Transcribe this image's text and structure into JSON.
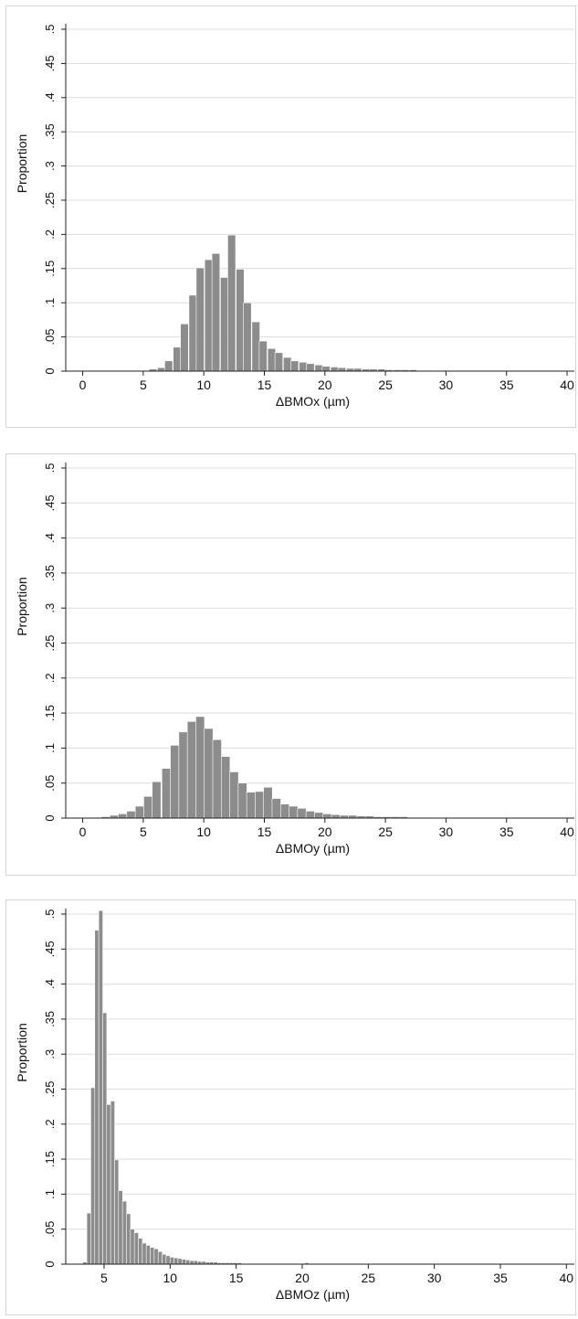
{
  "chart_data": [
    {
      "type": "bar",
      "ylabel": "Proportion",
      "xlabel": "ΔBMOx (µm)",
      "xlim": [
        -1.4,
        40.6
      ],
      "ylim": [
        0,
        0.5
      ],
      "xticks": [
        0,
        5,
        10,
        15,
        20,
        25,
        30,
        35,
        40
      ],
      "xtick_labels": [
        "0",
        "5",
        "10",
        "15",
        "20",
        "25",
        "30",
        "35",
        "40"
      ],
      "yticks": [
        0,
        0.05,
        0.1,
        0.15,
        0.2,
        0.25,
        0.3,
        0.35,
        0.4,
        0.45,
        0.5
      ],
      "ytick_labels": [
        "0",
        ".05",
        ".1",
        ".15",
        ".2",
        ".25",
        ".3",
        ".35",
        ".4",
        ".45",
        ".5"
      ],
      "grid": true,
      "bin_width": 0.65,
      "bins": [
        {
          "x": 4.5,
          "y": 0.001
        },
        {
          "x": 5.2,
          "y": 0.001
        },
        {
          "x": 5.8,
          "y": 0.003
        },
        {
          "x": 6.5,
          "y": 0.005
        },
        {
          "x": 7.1,
          "y": 0.015
        },
        {
          "x": 7.8,
          "y": 0.035
        },
        {
          "x": 8.4,
          "y": 0.069
        },
        {
          "x": 9.1,
          "y": 0.111
        },
        {
          "x": 9.7,
          "y": 0.151
        },
        {
          "x": 10.4,
          "y": 0.163
        },
        {
          "x": 11.0,
          "y": 0.172
        },
        {
          "x": 11.7,
          "y": 0.137
        },
        {
          "x": 12.3,
          "y": 0.199
        },
        {
          "x": 13.0,
          "y": 0.149
        },
        {
          "x": 13.6,
          "y": 0.1
        },
        {
          "x": 14.3,
          "y": 0.072
        },
        {
          "x": 14.9,
          "y": 0.044
        },
        {
          "x": 15.6,
          "y": 0.033
        },
        {
          "x": 16.2,
          "y": 0.027
        },
        {
          "x": 16.9,
          "y": 0.02
        },
        {
          "x": 17.5,
          "y": 0.015
        },
        {
          "x": 18.2,
          "y": 0.013
        },
        {
          "x": 18.8,
          "y": 0.011
        },
        {
          "x": 19.5,
          "y": 0.009
        },
        {
          "x": 20.1,
          "y": 0.007
        },
        {
          "x": 20.8,
          "y": 0.006
        },
        {
          "x": 21.4,
          "y": 0.005
        },
        {
          "x": 22.1,
          "y": 0.004
        },
        {
          "x": 22.7,
          "y": 0.004
        },
        {
          "x": 23.4,
          "y": 0.003
        },
        {
          "x": 24.0,
          "y": 0.003
        },
        {
          "x": 24.7,
          "y": 0.003
        },
        {
          "x": 25.3,
          "y": 0.002
        },
        {
          "x": 26.0,
          "y": 0.002
        },
        {
          "x": 26.6,
          "y": 0.002
        },
        {
          "x": 27.3,
          "y": 0.002
        },
        {
          "x": 27.9,
          "y": 0.001
        },
        {
          "x": 28.6,
          "y": 0.001
        },
        {
          "x": 29.2,
          "y": 0.001
        },
        {
          "x": 29.9,
          "y": 0.001
        },
        {
          "x": 30.5,
          "y": 0.001
        },
        {
          "x": 31.8,
          "y": 0.001
        },
        {
          "x": 33.1,
          "y": 0.001
        },
        {
          "x": 34.4,
          "y": 0.001
        },
        {
          "x": 35.7,
          "y": 0.001
        }
      ]
    },
    {
      "type": "bar",
      "ylabel": "Proportion",
      "xlabel": "ΔBMOy (µm)",
      "xlim": [
        -1.4,
        40.6
      ],
      "ylim": [
        0,
        0.5
      ],
      "xticks": [
        0,
        5,
        10,
        15,
        20,
        25,
        30,
        35,
        40
      ],
      "xtick_labels": [
        "0",
        "5",
        "10",
        "15",
        "20",
        "25",
        "30",
        "35",
        "40"
      ],
      "yticks": [
        0,
        0.05,
        0.1,
        0.15,
        0.2,
        0.25,
        0.3,
        0.35,
        0.4,
        0.45,
        0.5
      ],
      "ytick_labels": [
        "0",
        ".05",
        ".1",
        ".15",
        ".2",
        ".25",
        ".3",
        ".35",
        ".4",
        ".45",
        ".5"
      ],
      "grid": true,
      "bin_width": 0.72,
      "bins": [
        {
          "x": 1.2,
          "y": 0.001
        },
        {
          "x": 1.9,
          "y": 0.002
        },
        {
          "x": 2.6,
          "y": 0.004
        },
        {
          "x": 3.3,
          "y": 0.006
        },
        {
          "x": 4.0,
          "y": 0.01
        },
        {
          "x": 4.7,
          "y": 0.017
        },
        {
          "x": 5.4,
          "y": 0.031
        },
        {
          "x": 6.1,
          "y": 0.052
        },
        {
          "x": 6.9,
          "y": 0.071
        },
        {
          "x": 7.6,
          "y": 0.104
        },
        {
          "x": 8.3,
          "y": 0.123
        },
        {
          "x": 9.0,
          "y": 0.138
        },
        {
          "x": 9.7,
          "y": 0.145
        },
        {
          "x": 10.4,
          "y": 0.128
        },
        {
          "x": 11.1,
          "y": 0.112
        },
        {
          "x": 11.8,
          "y": 0.088
        },
        {
          "x": 12.5,
          "y": 0.066
        },
        {
          "x": 13.2,
          "y": 0.05
        },
        {
          "x": 13.9,
          "y": 0.037
        },
        {
          "x": 14.6,
          "y": 0.038
        },
        {
          "x": 15.3,
          "y": 0.044
        },
        {
          "x": 16.0,
          "y": 0.028
        },
        {
          "x": 16.7,
          "y": 0.02
        },
        {
          "x": 17.4,
          "y": 0.017
        },
        {
          "x": 18.1,
          "y": 0.014
        },
        {
          "x": 18.8,
          "y": 0.01
        },
        {
          "x": 19.5,
          "y": 0.008
        },
        {
          "x": 20.2,
          "y": 0.006
        },
        {
          "x": 20.9,
          "y": 0.005
        },
        {
          "x": 21.6,
          "y": 0.004
        },
        {
          "x": 22.3,
          "y": 0.004
        },
        {
          "x": 23.0,
          "y": 0.003
        },
        {
          "x": 23.7,
          "y": 0.003
        },
        {
          "x": 24.4,
          "y": 0.002
        },
        {
          "x": 25.1,
          "y": 0.002
        },
        {
          "x": 25.8,
          "y": 0.002
        },
        {
          "x": 26.5,
          "y": 0.002
        },
        {
          "x": 27.2,
          "y": 0.001
        },
        {
          "x": 27.9,
          "y": 0.001
        },
        {
          "x": 28.6,
          "y": 0.001
        },
        {
          "x": 29.3,
          "y": 0.001
        },
        {
          "x": 30.0,
          "y": 0.001
        },
        {
          "x": 31.4,
          "y": 0.001
        },
        {
          "x": 34.2,
          "y": 0.001
        },
        {
          "x": 39.2,
          "y": 0.001
        }
      ]
    },
    {
      "type": "bar",
      "ylabel": "Proportion",
      "xlabel": "ΔBMOz (µm)",
      "xlim": [
        2.1,
        40.6
      ],
      "ylim": [
        0,
        0.5
      ],
      "xticks": [
        5,
        10,
        15,
        20,
        25,
        30,
        35,
        40
      ],
      "xtick_labels": [
        "5",
        "10",
        "15",
        "20",
        "25",
        "30",
        "35",
        "40"
      ],
      "yticks": [
        0,
        0.05,
        0.1,
        0.15,
        0.2,
        0.25,
        0.3,
        0.35,
        0.4,
        0.45,
        0.5
      ],
      "ytick_labels": [
        "0",
        ".05",
        ".1",
        ".15",
        ".2",
        ".25",
        ".3",
        ".35",
        ".4",
        ".45",
        ".5"
      ],
      "grid": true,
      "bin_width": 0.31,
      "bins": [
        {
          "x": 3.55,
          "y": 0.003
        },
        {
          "x": 3.85,
          "y": 0.073
        },
        {
          "x": 4.15,
          "y": 0.252
        },
        {
          "x": 4.45,
          "y": 0.477
        },
        {
          "x": 4.75,
          "y": 0.505
        },
        {
          "x": 5.05,
          "y": 0.359
        },
        {
          "x": 5.35,
          "y": 0.228
        },
        {
          "x": 5.65,
          "y": 0.233
        },
        {
          "x": 5.95,
          "y": 0.149
        },
        {
          "x": 6.25,
          "y": 0.105
        },
        {
          "x": 6.55,
          "y": 0.09
        },
        {
          "x": 6.85,
          "y": 0.072
        },
        {
          "x": 7.15,
          "y": 0.05
        },
        {
          "x": 7.45,
          "y": 0.045
        },
        {
          "x": 7.75,
          "y": 0.037
        },
        {
          "x": 8.05,
          "y": 0.03
        },
        {
          "x": 8.35,
          "y": 0.027
        },
        {
          "x": 8.65,
          "y": 0.024
        },
        {
          "x": 8.95,
          "y": 0.022
        },
        {
          "x": 9.25,
          "y": 0.018
        },
        {
          "x": 9.55,
          "y": 0.014
        },
        {
          "x": 9.85,
          "y": 0.012
        },
        {
          "x": 10.15,
          "y": 0.01
        },
        {
          "x": 10.45,
          "y": 0.009
        },
        {
          "x": 10.75,
          "y": 0.008
        },
        {
          "x": 11.05,
          "y": 0.007
        },
        {
          "x": 11.35,
          "y": 0.006
        },
        {
          "x": 11.65,
          "y": 0.005
        },
        {
          "x": 11.95,
          "y": 0.005
        },
        {
          "x": 12.25,
          "y": 0.004
        },
        {
          "x": 12.55,
          "y": 0.004
        },
        {
          "x": 12.85,
          "y": 0.003
        },
        {
          "x": 13.15,
          "y": 0.003
        },
        {
          "x": 13.45,
          "y": 0.003
        },
        {
          "x": 13.75,
          "y": 0.002
        },
        {
          "x": 14.05,
          "y": 0.002
        },
        {
          "x": 14.35,
          "y": 0.002
        },
        {
          "x": 14.65,
          "y": 0.002
        },
        {
          "x": 14.95,
          "y": 0.002
        },
        {
          "x": 15.25,
          "y": 0.002
        },
        {
          "x": 15.55,
          "y": 0.001
        },
        {
          "x": 15.85,
          "y": 0.001
        },
        {
          "x": 16.15,
          "y": 0.001
        },
        {
          "x": 16.45,
          "y": 0.001
        },
        {
          "x": 16.75,
          "y": 0.001
        },
        {
          "x": 17.05,
          "y": 0.001
        },
        {
          "x": 17.35,
          "y": 0.001
        },
        {
          "x": 17.95,
          "y": 0.001
        },
        {
          "x": 18.55,
          "y": 0.001
        },
        {
          "x": 19.45,
          "y": 0.001
        },
        {
          "x": 20.35,
          "y": 0.002
        }
      ]
    }
  ]
}
